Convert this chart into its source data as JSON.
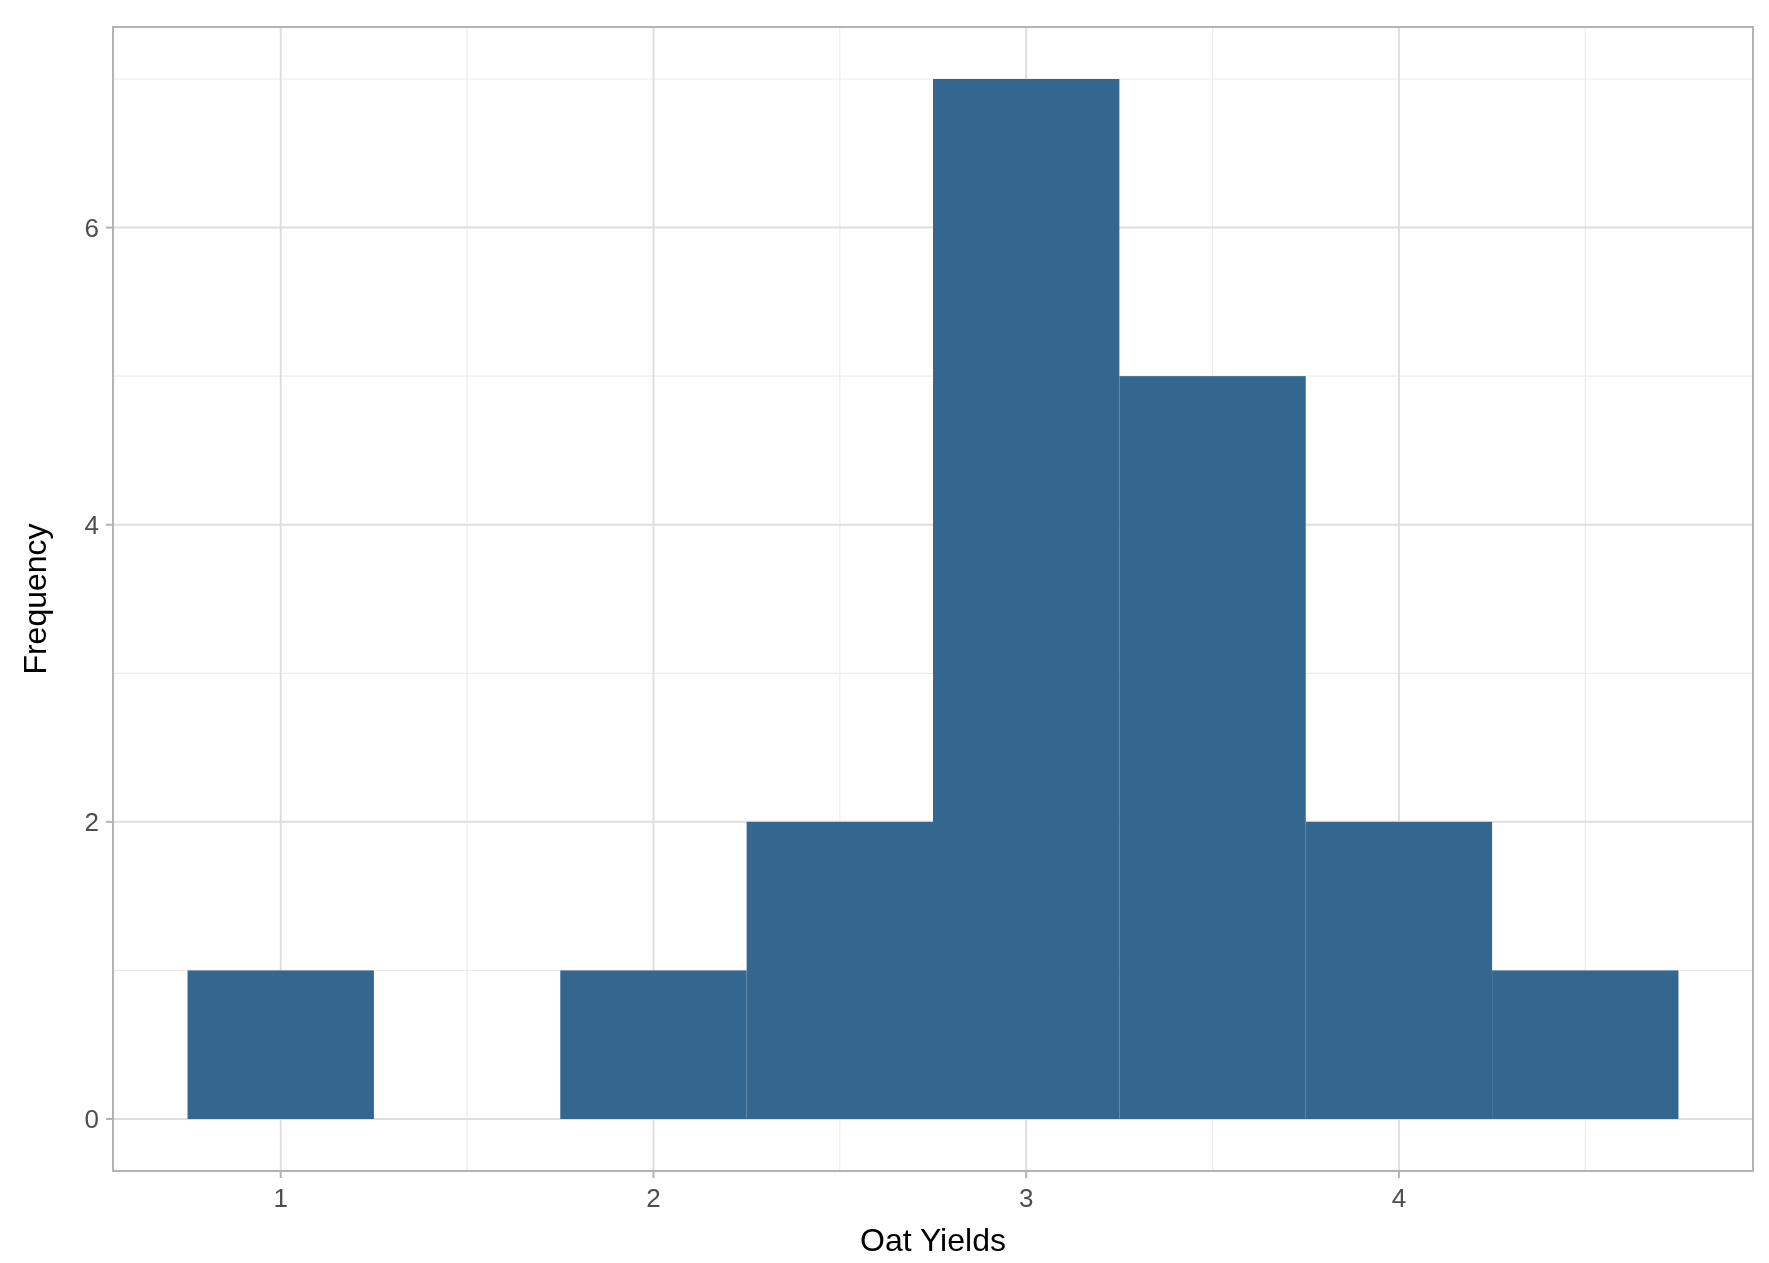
{
  "chart_data": {
    "type": "histogram",
    "xlabel": "Oat Yields",
    "ylabel": "Frequency",
    "bins": [
      0.75,
      1.25,
      1.75,
      2.25,
      2.75,
      3.25,
      3.75,
      4.25,
      4.75
    ],
    "values": [
      1,
      0,
      1,
      2,
      7,
      5,
      2,
      1
    ],
    "color": "#336790",
    "xlim": [
      0.55,
      4.95
    ],
    "xticks": [
      1,
      2,
      3,
      4
    ],
    "ylim": [
      -0.35,
      7.35
    ],
    "yticks": [
      0,
      2,
      4,
      6
    ],
    "grid": true
  }
}
